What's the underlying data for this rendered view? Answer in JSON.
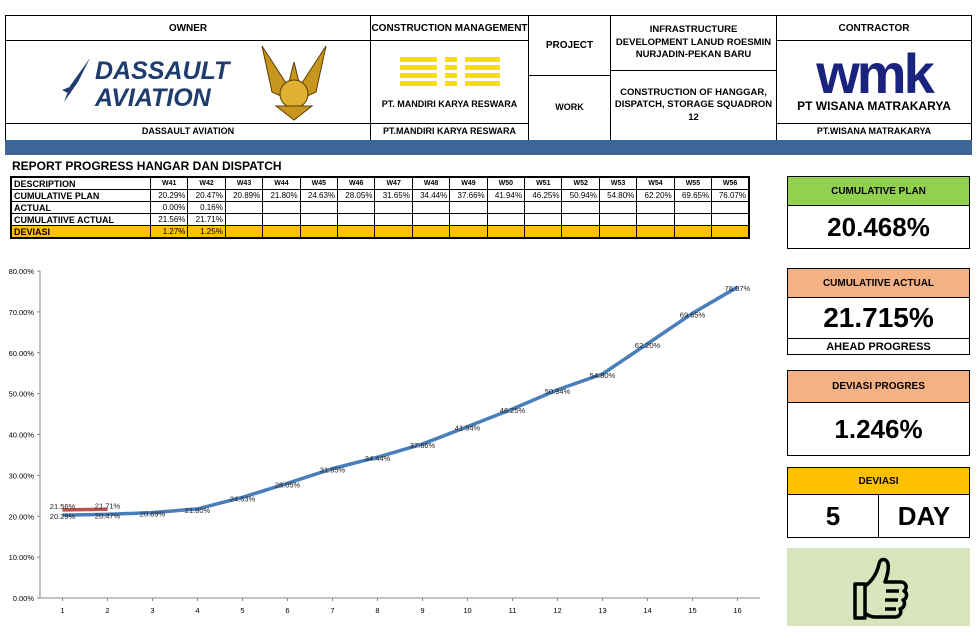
{
  "header": {
    "owner_label": "OWNER",
    "owner_logo": [
      "DASSAULT",
      "AVIATION"
    ],
    "owner_name": "DASSAULT AVIATION",
    "cm_label": "CONSTRUCTION MANAGEMENT",
    "cm_logo": "PT. MANDIRI KARYA RESWARA",
    "cm_name": "PT.MANDIRI KARYA RESWARA",
    "project_label": "PROJECT",
    "project": "INFRASTRUCTURE DEVELOPMENT LANUD ROESMIN NURJADIN-PEKAN BARU",
    "work_label": "WORK",
    "work": "CONSTRUCTION OF HANGGAR, DISPATCH, STORAGE SQUADRON 12",
    "contractor_label": "CONTRACTOR",
    "contractor_logo": [
      "wmk",
      "PT WISANA MATRAKARYA"
    ],
    "contractor_name": "PT.WISANA MATRAKARYA"
  },
  "table": {
    "title": "REPORT PROGRESS HANGAR DAN DISPATCH",
    "header": [
      "DESCRIPTION",
      "W41",
      "W42",
      "W43",
      "W44",
      "W45",
      "W46",
      "W47",
      "W48",
      "W49",
      "W50",
      "W51",
      "W52",
      "W53",
      "W54",
      "W55",
      "W56"
    ],
    "rows": [
      [
        "CUMULATIVE PLAN",
        "20.29%",
        "20.47%",
        "20.89%",
        "21.80%",
        "24.63%",
        "28.05%",
        "31.65%",
        "34.44%",
        "37.66%",
        "41.94%",
        "46.25%",
        "50.94%",
        "54.80%",
        "62.20%",
        "69.65%",
        "76.07%"
      ],
      [
        "ACTUAL",
        "0.00%",
        "0.16%"
      ],
      [
        "CUMULATIIVE ACTUAL",
        "21.56%",
        "21.71%"
      ],
      [
        "DEVIASI",
        "1.27%",
        "1.25%"
      ]
    ]
  },
  "cards": [
    {
      "title": "CUMULATIVE PLAN",
      "value": "20.468%"
    },
    {
      "title": "CUMULATIIVE ACTUAL",
      "value": "21.715%",
      "note": "AHEAD PROGRESS"
    },
    {
      "title": "DEVIASI PROGRES",
      "value": "1.246%"
    },
    {
      "title": "DEVIASI",
      "value": "5",
      "unit": "DAY"
    }
  ],
  "chart_data": {
    "type": "line",
    "x": [
      1,
      2,
      3,
      4,
      5,
      6,
      7,
      8,
      9,
      10,
      11,
      12,
      13,
      14,
      15,
      16
    ],
    "xlim": [
      0.5,
      16.5
    ],
    "xticks": [
      1,
      2,
      3,
      4,
      5,
      6,
      7,
      8,
      9,
      10,
      11,
      12,
      13,
      14,
      15,
      16
    ],
    "ylim": [
      0,
      80
    ],
    "yticks": [
      {
        "value": 0,
        "label": "0.00%"
      },
      {
        "value": 10,
        "label": "10.00%"
      },
      {
        "value": 20,
        "label": "20.00%"
      },
      {
        "value": 30,
        "label": "30.00%"
      },
      {
        "value": 40,
        "label": "40.00%"
      },
      {
        "value": 50,
        "label": "50.00%"
      },
      {
        "value": 60,
        "label": "60.00%"
      },
      {
        "value": 70,
        "label": "70.00%"
      },
      {
        "value": 80,
        "label": "80.00%"
      }
    ],
    "grid": false,
    "series": [
      {
        "name": "CUMULATIVE PLAN",
        "color": "#4a7ebb",
        "values": [
          20.29,
          20.47,
          20.89,
          21.8,
          24.63,
          28.05,
          31.65,
          34.44,
          37.66,
          41.94,
          46.25,
          50.94,
          54.8,
          62.2,
          69.65,
          76.07
        ],
        "value_labels": [
          "20.29%",
          "20.47%",
          "20.89%",
          "21.80%",
          "24.63%",
          "28.05%",
          "31.65%",
          "34.44%",
          "37.66%",
          "41.94%",
          "46.25%",
          "50.94%",
          "54.80%",
          "62.20%",
          "69.65%",
          "76.07%"
        ]
      },
      {
        "name": "CUMULATIIVE ACTUAL",
        "color": "#c0504d",
        "values": [
          21.56,
          21.71,
          null,
          null,
          null,
          null,
          null,
          null,
          null,
          null,
          null,
          null,
          null,
          null,
          null,
          null
        ],
        "value_labels": [
          "21.56%",
          "21.71%",
          null,
          null,
          null,
          null,
          null,
          null,
          null,
          null,
          null,
          null,
          null,
          null,
          null,
          null
        ]
      }
    ]
  }
}
